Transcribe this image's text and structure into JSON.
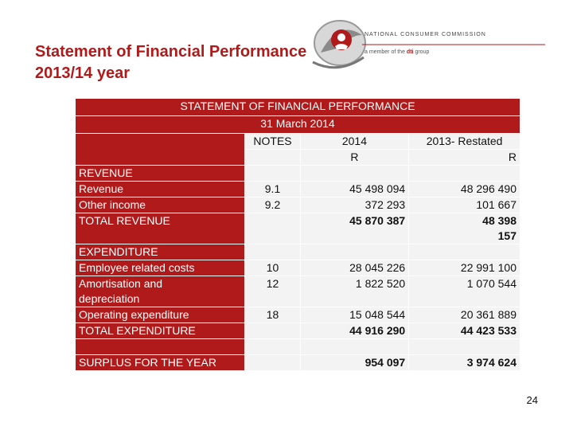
{
  "slide": {
    "title_line1": "Statement of Financial Performance",
    "title_line2": "2013/14 year",
    "logo_text": "NATIONAL CONSUMER COMMISSION",
    "logo_sub_prefix": "a member of the",
    "logo_sub_brand": "dti",
    "logo_sub_suffix": "group",
    "page_number": "24"
  },
  "table": {
    "heading": "STATEMENT OF FINANCIAL PERFORMANCE",
    "date": "31 March 2014",
    "col_notes": "NOTES",
    "col_2014": "2014",
    "col_2014_unit": "R",
    "col_2013": "2013- Restated",
    "col_2013_unit": "R",
    "revenue_heading": "REVENUE",
    "revenue_label": "Revenue",
    "revenue_note": "9.1",
    "revenue_2014": "45 498 094",
    "revenue_2013": "48 296 490",
    "other_income_label": "Other income",
    "other_income_note": "9.2",
    "other_income_2014": "372 293",
    "other_income_2013": "101 667",
    "total_revenue_label": "TOTAL REVENUE",
    "total_revenue_2014": "45 870 387",
    "total_revenue_2013_a": "48 398",
    "total_revenue_2013_b": "157",
    "expenditure_heading": "EXPENDITURE",
    "employee_label": "Employee related costs",
    "employee_note": "10",
    "employee_2014": "28 045 226",
    "employee_2013": "22 991 100",
    "amort_label_a": "Amortisation and",
    "amort_label_b": "depreciation",
    "amort_note": "12",
    "amort_2014": "1 822 520",
    "amort_2013": "1 070 544",
    "operating_label": "Operating expenditure",
    "operating_note": "18",
    "operating_2014": "15 048 544",
    "operating_2013": "20 361 889",
    "total_exp_label": "TOTAL EXPENDITURE",
    "total_exp_2014": "44 916 290",
    "total_exp_2013": "44 423 533",
    "surplus_label": "SURPLUS FOR THE YEAR",
    "surplus_2014": "954 097",
    "surplus_2013": "3 974 624"
  },
  "colors": {
    "accent": "#b01a1a",
    "cell": "#f3f3f3"
  }
}
